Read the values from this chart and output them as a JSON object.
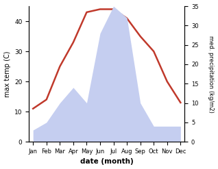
{
  "months": [
    "Jan",
    "Feb",
    "Mar",
    "Apr",
    "May",
    "Jun",
    "Jul",
    "Aug",
    "Sep",
    "Oct",
    "Nov",
    "Dec"
  ],
  "temp": [
    11,
    14,
    25,
    33,
    43,
    44,
    44,
    41,
    35,
    30,
    20,
    13
  ],
  "precip": [
    3,
    5,
    10,
    14,
    10,
    28,
    35,
    32,
    10,
    4,
    4,
    4
  ],
  "temp_color": "#c0392b",
  "precip_fill_color": "#c5cef0",
  "xlabel": "date (month)",
  "ylabel_left": "max temp (C)",
  "ylabel_right": "med. precipitation (kg/m2)",
  "ylim_left": [
    0,
    45
  ],
  "ylim_right": [
    0,
    35
  ],
  "yticks_left": [
    0,
    10,
    20,
    30,
    40
  ],
  "yticks_right": [
    0,
    5,
    10,
    15,
    20,
    25,
    30,
    35
  ],
  "background_color": "#ffffff"
}
